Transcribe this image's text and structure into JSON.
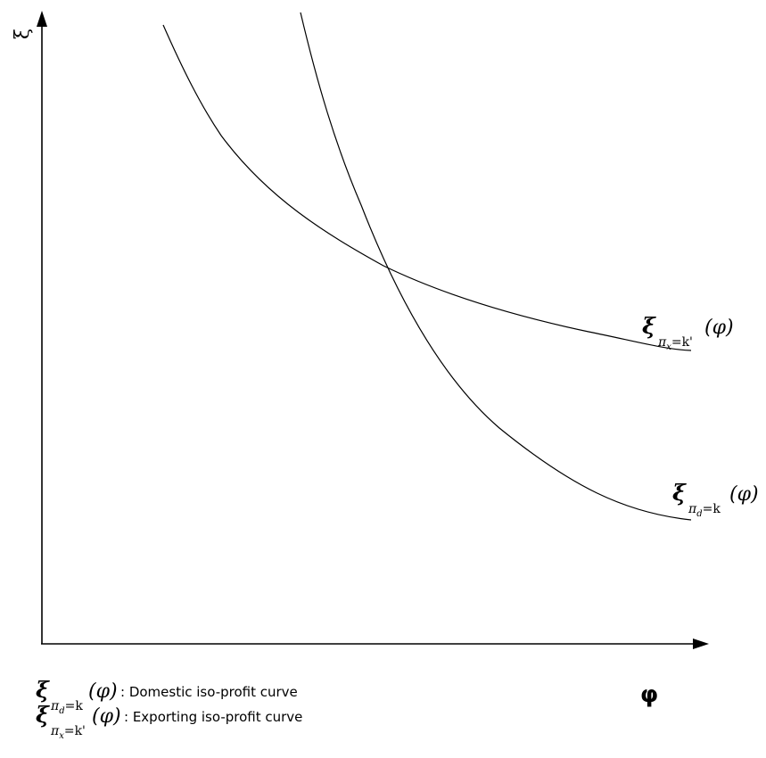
{
  "axes": {
    "y_label": "ξ",
    "x_label": "φ"
  },
  "curves": {
    "exporting": {
      "symbol": "ξ",
      "subscript_main": "π",
      "subscript_var": "x",
      "subscript_rest": "=k'",
      "argument": "(φ)"
    },
    "domestic": {
      "symbol": "ξ",
      "subscript_main": "π",
      "subscript_var": "d",
      "subscript_rest": "=k",
      "argument": "(φ)"
    }
  },
  "legend": {
    "domestic_text": ": Domestic iso-profit curve",
    "exporting_text": ": Exporting iso-profit curve"
  }
}
